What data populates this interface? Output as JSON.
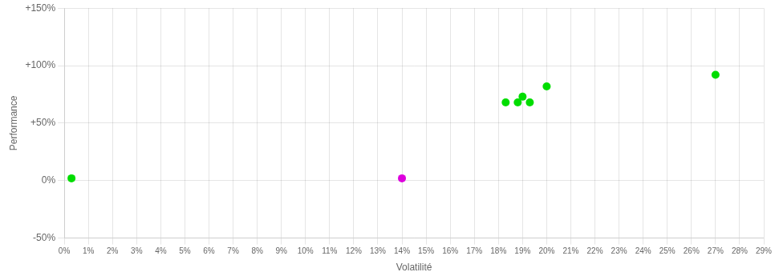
{
  "chart_data": {
    "type": "scatter",
    "xlabel": "Volatilité",
    "ylabel": "Performance",
    "series": [
      {
        "color": "#00dd00",
        "values": [
          [
            0.003,
            0.02
          ],
          [
            0.183,
            0.68
          ],
          [
            0.188,
            0.68
          ],
          [
            0.193,
            0.68
          ],
          [
            0.19,
            0.73
          ],
          [
            0.2,
            0.82
          ],
          [
            0.27,
            0.92
          ]
        ]
      },
      {
        "color": "#dd00dd",
        "values": [
          [
            0.14,
            0.02
          ]
        ]
      }
    ],
    "xlim": [
      0,
      0.29
    ],
    "ylim": [
      -0.5,
      1.5
    ],
    "xticks": [
      {
        "value": 0.0,
        "label": "0%"
      },
      {
        "value": 0.01,
        "label": "1%"
      },
      {
        "value": 0.02,
        "label": "2%"
      },
      {
        "value": 0.03,
        "label": "3%"
      },
      {
        "value": 0.04,
        "label": "4%"
      },
      {
        "value": 0.05,
        "label": "5%"
      },
      {
        "value": 0.06,
        "label": "6%"
      },
      {
        "value": 0.07,
        "label": "7%"
      },
      {
        "value": 0.08,
        "label": "8%"
      },
      {
        "value": 0.09,
        "label": "9%"
      },
      {
        "value": 0.1,
        "label": "10%"
      },
      {
        "value": 0.11,
        "label": "11%"
      },
      {
        "value": 0.12,
        "label": "12%"
      },
      {
        "value": 0.13,
        "label": "13%"
      },
      {
        "value": 0.14,
        "label": "14%"
      },
      {
        "value": 0.15,
        "label": "15%"
      },
      {
        "value": 0.16,
        "label": "16%"
      },
      {
        "value": 0.17,
        "label": "17%"
      },
      {
        "value": 0.18,
        "label": "18%"
      },
      {
        "value": 0.19,
        "label": "19%"
      },
      {
        "value": 0.2,
        "label": "20%"
      },
      {
        "value": 0.21,
        "label": "21%"
      },
      {
        "value": 0.22,
        "label": "22%"
      },
      {
        "value": 0.23,
        "label": "23%"
      },
      {
        "value": 0.24,
        "label": "24%"
      },
      {
        "value": 0.25,
        "label": "25%"
      },
      {
        "value": 0.26,
        "label": "26%"
      },
      {
        "value": 0.27,
        "label": "27%"
      },
      {
        "value": 0.28,
        "label": "28%"
      },
      {
        "value": 0.29,
        "label": "29%"
      }
    ],
    "yticks": [
      {
        "value": -0.5,
        "label": "-50%"
      },
      {
        "value": 0.0,
        "label": "0%"
      },
      {
        "value": 0.5,
        "label": "+50%"
      },
      {
        "value": 1.0,
        "label": "+100%"
      },
      {
        "value": 1.5,
        "label": "+150%"
      }
    ],
    "grid": true
  }
}
